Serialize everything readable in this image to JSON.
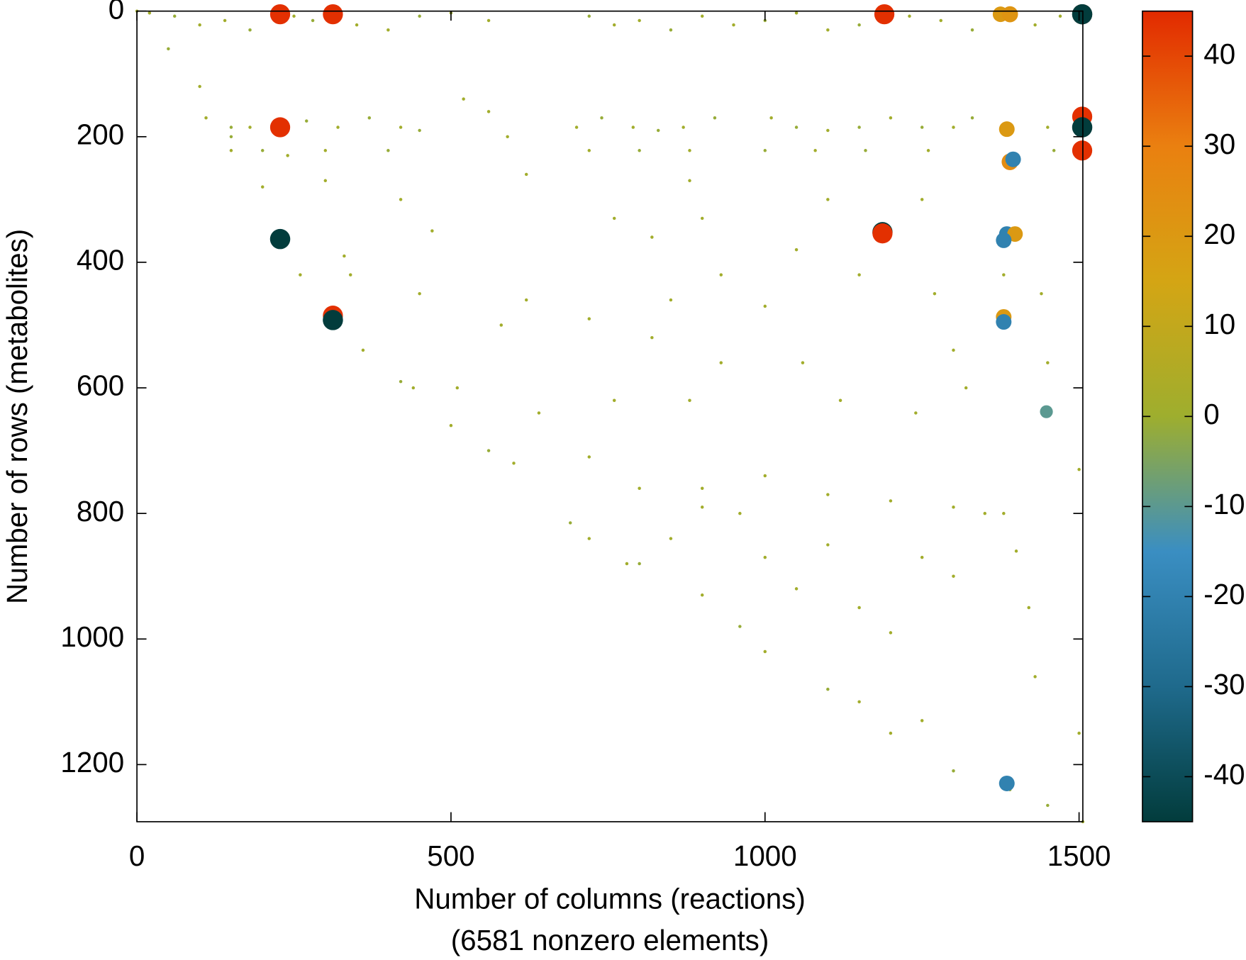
{
  "chart_data": {
    "type": "scatter",
    "x_label": "Number of columns (reactions)",
    "x_label_2": "(6581 nonzero elements)",
    "y_label": "Number of rows (metabolites)",
    "xlim": [
      0,
      1506
    ],
    "ylim": [
      1291,
      0
    ],
    "xticks": [
      0,
      500,
      1000,
      1500
    ],
    "yticks": [
      0,
      200,
      400,
      600,
      800,
      1000,
      1200
    ],
    "clim": [
      -45,
      45
    ],
    "cticks": [
      -40,
      -30,
      -20,
      -10,
      0,
      10,
      20,
      30,
      40
    ],
    "colormap": [
      "#023c3c",
      "#1f6a8c",
      "#3a8ec2",
      "#9eae2e",
      "#d4a514",
      "#ea8010",
      "#e22a00"
    ],
    "x": [
      20,
      60,
      100,
      140,
      180,
      250,
      280,
      350,
      400,
      450,
      500,
      560,
      720,
      760,
      800,
      850,
      900,
      950,
      1000,
      1050,
      1100,
      1150,
      1230,
      1280,
      1330,
      1430,
      1470,
      110,
      150,
      180,
      270,
      320,
      370,
      420,
      450,
      700,
      740,
      790,
      830,
      870,
      920,
      1010,
      1050,
      1100,
      1150,
      1200,
      1250,
      1300,
      1330,
      1450,
      150,
      200,
      300,
      400,
      720,
      800,
      880,
      1000,
      1080,
      1160,
      1260,
      1460,
      300,
      330,
      420,
      450,
      510,
      440,
      620,
      580,
      720,
      760,
      820,
      850,
      880,
      900,
      930,
      760,
      820,
      880,
      930,
      1000,
      1050,
      1100,
      1150,
      1060,
      1120,
      1250,
      1270,
      1300,
      1320,
      1240,
      1380,
      1450,
      1440,
      1500,
      1500,
      780,
      850,
      900,
      960,
      1000,
      1050,
      1100,
      1150,
      1200,
      1250,
      1300,
      1350,
      1400,
      1420,
      1430,
      1150,
      1250,
      720,
      800,
      900,
      1000,
      1100,
      1200,
      1300,
      1380,
      620,
      640,
      560,
      520,
      590,
      470,
      240,
      340,
      0,
      50,
      100,
      150,
      200,
      230,
      260,
      310,
      360,
      420,
      500,
      560,
      600,
      690,
      720,
      800,
      900,
      960,
      1000,
      1100,
      1200,
      1300,
      1390,
      1450,
      1506,
      228,
      312,
      1190,
      1375,
      1390,
      1505,
      1505,
      228,
      1505,
      1505,
      1505,
      1385,
      1390,
      1395,
      228,
      1187,
      1187,
      1385,
      1398,
      1380,
      1380,
      1380,
      312,
      312,
      1385,
      1448
    ],
    "y": [
      3,
      8,
      22,
      15,
      30,
      8,
      15,
      22,
      30,
      8,
      3,
      15,
      8,
      22,
      15,
      30,
      8,
      22,
      15,
      3,
      30,
      22,
      8,
      15,
      30,
      22,
      8,
      170,
      185,
      185,
      175,
      185,
      170,
      185,
      190,
      185,
      170,
      185,
      190,
      185,
      170,
      170,
      185,
      190,
      185,
      170,
      185,
      185,
      170,
      185,
      222,
      222,
      222,
      222,
      222,
      222,
      222,
      222,
      222,
      222,
      222,
      222,
      270,
      390,
      300,
      450,
      600,
      600,
      260,
      500,
      490,
      330,
      360,
      460,
      270,
      330,
      420,
      620,
      520,
      620,
      560,
      470,
      380,
      300,
      420,
      560,
      620,
      300,
      450,
      540,
      600,
      640,
      420,
      560,
      450,
      730,
      1150,
      880,
      840,
      760,
      800,
      870,
      920,
      850,
      950,
      990,
      870,
      900,
      800,
      860,
      950,
      1060,
      1100,
      1130,
      710,
      760,
      790,
      740,
      770,
      780,
      790,
      800,
      460,
      640,
      160,
      140,
      200,
      350,
      230,
      420,
      0,
      60,
      120,
      200,
      280,
      365,
      420,
      490,
      540,
      590,
      660,
      700,
      720,
      815,
      840,
      880,
      930,
      980,
      1020,
      1080,
      1150,
      1210,
      1240,
      1265,
      1291,
      5,
      5,
      5,
      5,
      5,
      5,
      5,
      185,
      168,
      185,
      222,
      188,
      240,
      236,
      363,
      352,
      354,
      355,
      355,
      365,
      487,
      495,
      485,
      492,
      1230,
      638
    ],
    "values": [
      1,
      -1,
      1,
      1,
      -1,
      1,
      -1,
      1,
      1,
      -1,
      1,
      1,
      -1,
      1,
      1,
      -1,
      1,
      1,
      -1,
      1,
      1,
      -1,
      1,
      1,
      -1,
      1,
      1,
      1,
      -1,
      1,
      -1,
      1,
      -1,
      1,
      -1,
      1,
      -1,
      1,
      -1,
      1,
      -1,
      1,
      -1,
      1,
      -1,
      1,
      -1,
      1,
      -1,
      1,
      1,
      -1,
      1,
      -1,
      1,
      -1,
      1,
      -1,
      1,
      -1,
      1,
      -1,
      1,
      1,
      1,
      1,
      1,
      1,
      1,
      1,
      1,
      1,
      1,
      1,
      1,
      1,
      1,
      1,
      1,
      1,
      1,
      1,
      1,
      1,
      1,
      1,
      1,
      1,
      1,
      1,
      1,
      1,
      1,
      1,
      1,
      1,
      1,
      1,
      1,
      1,
      1,
      1,
      1,
      1,
      1,
      1,
      1,
      1,
      1,
      1,
      1,
      1,
      1,
      1,
      1,
      1,
      1,
      1,
      1,
      1,
      1,
      1,
      1,
      1,
      1,
      1,
      1,
      1,
      1,
      1,
      1,
      -1,
      1,
      -1,
      1,
      -1,
      1,
      -1,
      1,
      -1,
      1,
      -1,
      1,
      -1,
      1,
      -1,
      1,
      -1,
      1,
      -1,
      1,
      -1,
      1,
      -1,
      1,
      44,
      44,
      44,
      20,
      22,
      44,
      -45,
      44,
      44,
      -45,
      44,
      20,
      25,
      -20,
      -45,
      -45,
      44,
      -20,
      20,
      -20,
      20,
      -20,
      44,
      -45,
      -20,
      -10
    ]
  }
}
